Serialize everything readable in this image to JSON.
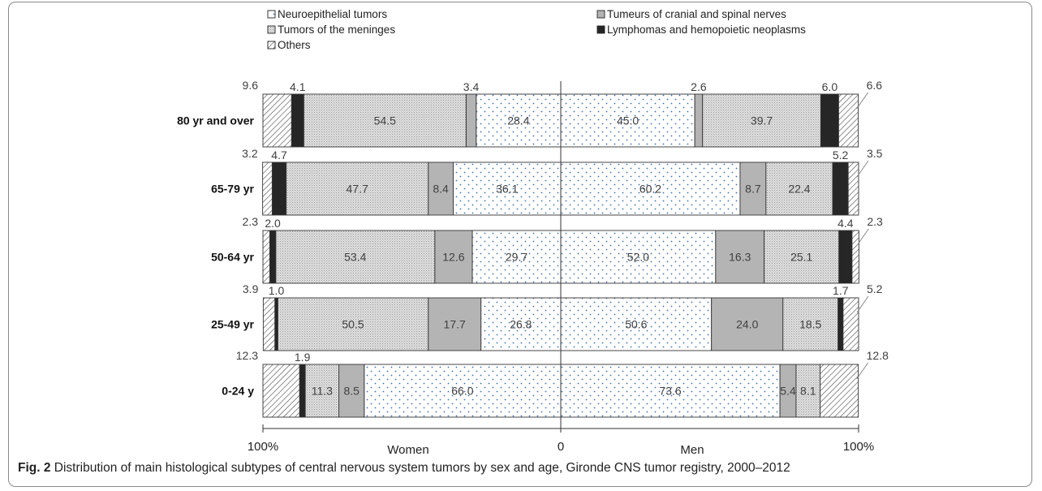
{
  "caption": {
    "label": "Fig. 2",
    "text": "Distribution of main histological subtypes of central nervous system tumors by sex and age, Gironde CNS tumor registry, 2000–2012"
  },
  "chart_data": {
    "type": "bar",
    "orientation": "horizontal",
    "stacked": true,
    "layout": "population-pyramid",
    "legend_placement": "top",
    "axis": {
      "left_end": "100%",
      "center": "0",
      "right_end": "100%",
      "left_label": "Women",
      "right_label": "Men"
    },
    "categories": [
      "80 yr and over",
      "65-79 yr",
      "50-64 yr",
      "25-49 yr",
      "0-24 y"
    ],
    "series": [
      {
        "name": "Neuroepithelial tumors",
        "color": "#ffffff",
        "pattern": "dots",
        "women": [
          28.4,
          36.1,
          29.7,
          26.8,
          66.0
        ],
        "men": [
          45.0,
          60.2,
          52.0,
          50.6,
          73.6
        ]
      },
      {
        "name": "Tumeurs of cranial and spinal nerves",
        "color": "#b4b4b4",
        "pattern": "solid",
        "women": [
          3.4,
          8.4,
          12.6,
          17.7,
          8.5
        ],
        "men": [
          2.6,
          8.7,
          16.3,
          24.0,
          5.4
        ]
      },
      {
        "name": "Tumors of the meninges",
        "color": "#d9d9d9",
        "pattern": "fine-dots",
        "women": [
          54.5,
          47.7,
          53.4,
          50.5,
          11.3
        ],
        "men": [
          39.7,
          22.4,
          25.1,
          18.5,
          8.1
        ]
      },
      {
        "name": "Lymphomas and hemopoietic neoplasms",
        "color": "#262626",
        "pattern": "solid",
        "women": [
          4.1,
          4.7,
          2.0,
          1.0,
          1.9
        ],
        "men": [
          6.0,
          5.2,
          4.4,
          1.7,
          0
        ]
      },
      {
        "name": "Others",
        "color": "#ffffff",
        "pattern": "diagonal-hatch",
        "women": [
          9.6,
          3.2,
          2.3,
          3.9,
          12.3
        ],
        "men": [
          6.6,
          3.5,
          2.3,
          5.2,
          12.8
        ]
      }
    ]
  }
}
